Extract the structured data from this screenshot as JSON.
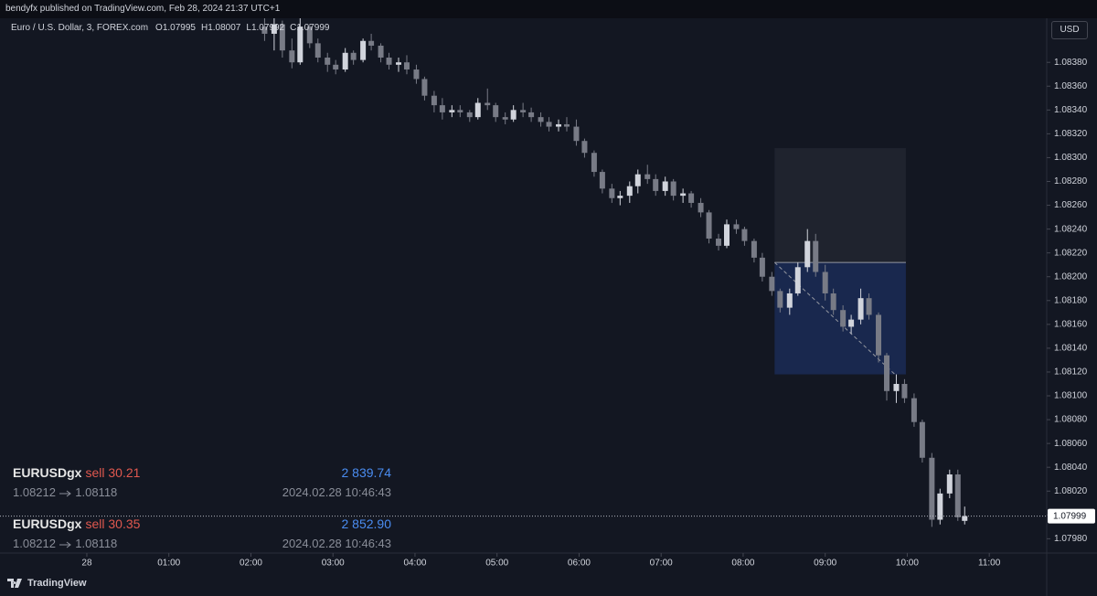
{
  "header": {
    "publisher": "bendyfx published on TradingView.com, Feb 28, 2024 21:37 UTC+1"
  },
  "chart_data": {
    "type": "candlestick",
    "title": "Euro / U.S. Dollar, 3, FOREX.com",
    "ohlc_legend": [
      {
        "label": "O",
        "value": 1.07995
      },
      {
        "label": "H",
        "value": 1.08007
      },
      {
        "label": "L",
        "value": 1.07992
      },
      {
        "label": "C",
        "value": 1.07999
      }
    ],
    "currency": "USD",
    "x": [
      130,
      137,
      143,
      150,
      156,
      163,
      169,
      176,
      182,
      189,
      195,
      202,
      208,
      215,
      221,
      228,
      234,
      241,
      247,
      254,
      260,
      267,
      273,
      280,
      286,
      293,
      299,
      306,
      312,
      319,
      325,
      332,
      338,
      345,
      351,
      358,
      364,
      371,
      377,
      384,
      390,
      397,
      403,
      410,
      416,
      423,
      429,
      436,
      442,
      449,
      455,
      462,
      468,
      475,
      481,
      488,
      494,
      501,
      507,
      514,
      520,
      527,
      533,
      540,
      546,
      553,
      559,
      566,
      572,
      579,
      585,
      592,
      598,
      605,
      611,
      618,
      624,
      631,
      637,
      642
    ],
    "open": [
      1.0841,
      1.08404,
      1.08412,
      1.0839,
      1.0838,
      1.0841,
      1.08396,
      1.08384,
      1.08378,
      1.08374,
      1.08388,
      1.08382,
      1.08398,
      1.08394,
      1.08384,
      1.08378,
      1.0838,
      1.08374,
      1.08366,
      1.08352,
      1.08344,
      1.08338,
      1.0834,
      1.08338,
      1.08334,
      1.08346,
      1.08344,
      1.08334,
      1.08332,
      1.0834,
      1.08338,
      1.08334,
      1.0833,
      1.08326,
      1.08328,
      1.08326,
      1.08314,
      1.08304,
      1.08288,
      1.08274,
      1.08266,
      1.08268,
      1.08276,
      1.08286,
      1.08282,
      1.08272,
      1.0828,
      1.08268,
      1.0827,
      1.08262,
      1.08254,
      1.08232,
      1.08226,
      1.08244,
      1.0824,
      1.0823,
      1.08216,
      1.082,
      1.08188,
      1.08174,
      1.08186,
      1.08208,
      1.0823,
      1.08204,
      1.08186,
      1.08172,
      1.08158,
      1.08164,
      1.08182,
      1.08168,
      1.08134,
      1.08104,
      1.0811,
      1.08098,
      1.08078,
      1.08048,
      1.07996,
      1.08018,
      1.08034,
      1.07995
    ],
    "high": [
      1.08425,
      1.0842,
      1.08415,
      1.084,
      1.08418,
      1.08412,
      1.084,
      1.08388,
      1.08382,
      1.08392,
      1.0839,
      1.084,
      1.08404,
      1.08396,
      1.08388,
      1.08384,
      1.08386,
      1.08378,
      1.08368,
      1.08356,
      1.0835,
      1.08344,
      1.08344,
      1.0834,
      1.0835,
      1.08358,
      1.08346,
      1.08338,
      1.08344,
      1.08346,
      1.08342,
      1.08338,
      1.08334,
      1.08332,
      1.08334,
      1.08332,
      1.08316,
      1.08306,
      1.0829,
      1.08278,
      1.08272,
      1.0828,
      1.0829,
      1.08294,
      1.08286,
      1.08284,
      1.08282,
      1.08274,
      1.08272,
      1.08266,
      1.08256,
      1.08236,
      1.08248,
      1.08248,
      1.08242,
      1.08232,
      1.0822,
      1.08204,
      1.0819,
      1.0819,
      1.08212,
      1.0824,
      1.08236,
      1.0821,
      1.0819,
      1.08176,
      1.08168,
      1.0819,
      1.08186,
      1.0817,
      1.08136,
      1.08118,
      1.08114,
      1.08102,
      1.0808,
      1.08052,
      1.08022,
      1.08038,
      1.08038,
      1.08007
    ],
    "low": [
      1.08398,
      1.0839,
      1.08384,
      1.08375,
      1.08378,
      1.08392,
      1.0838,
      1.08372,
      1.0837,
      1.08372,
      1.08378,
      1.0838,
      1.0839,
      1.0838,
      1.08374,
      1.08372,
      1.0837,
      1.08362,
      1.08348,
      1.08338,
      1.08332,
      1.08334,
      1.08334,
      1.0833,
      1.08332,
      1.0834,
      1.0833,
      1.08328,
      1.0833,
      1.08334,
      1.0833,
      1.08326,
      1.08322,
      1.08322,
      1.08322,
      1.0831,
      1.083,
      1.08284,
      1.0827,
      1.08262,
      1.0826,
      1.08262,
      1.0827,
      1.08278,
      1.08268,
      1.08268,
      1.08264,
      1.08262,
      1.08258,
      1.0825,
      1.08228,
      1.08222,
      1.08224,
      1.08236,
      1.08226,
      1.08212,
      1.08196,
      1.08184,
      1.0817,
      1.08168,
      1.08184,
      1.08204,
      1.082,
      1.0818,
      1.08168,
      1.08154,
      1.08152,
      1.0816,
      1.08164,
      1.08128,
      1.08096,
      1.08094,
      1.08094,
      1.08074,
      1.08044,
      1.0799,
      1.07992,
      1.08014,
      1.07995,
      1.07992
    ],
    "close": [
      1.08404,
      1.08412,
      1.0839,
      1.0838,
      1.0841,
      1.08396,
      1.08384,
      1.08378,
      1.08374,
      1.08388,
      1.08382,
      1.08398,
      1.08394,
      1.08384,
      1.08378,
      1.0838,
      1.08374,
      1.08366,
      1.08352,
      1.08344,
      1.08338,
      1.0834,
      1.08338,
      1.08334,
      1.08346,
      1.08344,
      1.08334,
      1.08332,
      1.0834,
      1.08338,
      1.08334,
      1.0833,
      1.08326,
      1.08328,
      1.08326,
      1.08314,
      1.08304,
      1.08288,
      1.08274,
      1.08266,
      1.08268,
      1.08276,
      1.08286,
      1.08282,
      1.08272,
      1.0828,
      1.08268,
      1.0827,
      1.08262,
      1.08254,
      1.08232,
      1.08226,
      1.08244,
      1.0824,
      1.0823,
      1.08216,
      1.082,
      1.08188,
      1.08174,
      1.08186,
      1.08208,
      1.0823,
      1.08204,
      1.08186,
      1.08172,
      1.08158,
      1.08164,
      1.08182,
      1.08168,
      1.08134,
      1.08104,
      1.0811,
      1.08098,
      1.08078,
      1.08048,
      1.07996,
      1.08018,
      1.08034,
      1.07998,
      1.07999
    ],
    "up_color": "#d1d4dc",
    "down_color": "#787b86",
    "xlim": [
      -63.5,
      702
    ],
    "ylim": [
      1.07968,
      1.08417
    ],
    "xticks": [
      {
        "value": 0,
        "label": "28"
      },
      {
        "value": 60,
        "label": "01:00"
      },
      {
        "value": 120,
        "label": "02:00"
      },
      {
        "value": 180,
        "label": "03:00"
      },
      {
        "value": 240,
        "label": "04:00"
      },
      {
        "value": 300,
        "label": "05:00"
      },
      {
        "value": 360,
        "label": "06:00"
      },
      {
        "value": 420,
        "label": "07:00"
      },
      {
        "value": 480,
        "label": "08:00"
      },
      {
        "value": 540,
        "label": "09:00"
      },
      {
        "value": 600,
        "label": "10:00"
      },
      {
        "value": 660,
        "label": "11:00"
      }
    ],
    "yticks": [
      {
        "value": 1.0798,
        "label": "1.07980"
      },
      {
        "value": 1.08,
        "label": "1.08000"
      },
      {
        "value": 1.0802,
        "label": "1.08020"
      },
      {
        "value": 1.0804,
        "label": "1.08040"
      },
      {
        "value": 1.0806,
        "label": "1.08060"
      },
      {
        "value": 1.0808,
        "label": "1.08080"
      },
      {
        "value": 1.081,
        "label": "1.08100"
      },
      {
        "value": 1.0812,
        "label": "1.08120"
      },
      {
        "value": 1.0814,
        "label": "1.08140"
      },
      {
        "value": 1.0816,
        "label": "1.08160"
      },
      {
        "value": 1.0818,
        "label": "1.08180"
      },
      {
        "value": 1.082,
        "label": "1.08200"
      },
      {
        "value": 1.0822,
        "label": "1.08220"
      },
      {
        "value": 1.0824,
        "label": "1.08240"
      },
      {
        "value": 1.0826,
        "label": "1.08260"
      },
      {
        "value": 1.0828,
        "label": "1.08280"
      },
      {
        "value": 1.083,
        "label": "1.08300"
      },
      {
        "value": 1.0832,
        "label": "1.08320"
      },
      {
        "value": 1.0834,
        "label": "1.08340"
      },
      {
        "value": 1.0836,
        "label": "1.08360"
      },
      {
        "value": 1.0838,
        "label": "1.08380"
      }
    ],
    "grid": false,
    "position": {
      "stop": 1.08308,
      "start": 503,
      "end": 599
    }
  },
  "orders": [
    {
      "symbol": "EURUSDgx",
      "side": "sell 30.21",
      "profit": "2 839.74",
      "from": 1.08212,
      "to": 1.08118,
      "time": "2024.02.28 10:46:43"
    },
    {
      "symbol": "EURUSDgx",
      "side": "sell 30.35",
      "profit": "2 852.90",
      "from": 1.08212,
      "to": 1.08118,
      "time": "2024.02.28 10:46:43"
    }
  ],
  "footer": {
    "brand": "TradingView"
  }
}
